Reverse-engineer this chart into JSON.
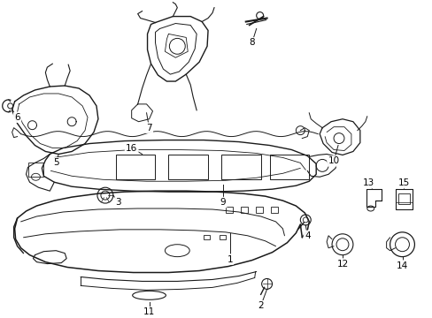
{
  "background_color": "#ffffff",
  "line_color": "#1a1a1a",
  "fig_width": 4.89,
  "fig_height": 3.6,
  "dpi": 100,
  "label_fontsize": 7.5,
  "parts": {
    "bumper_color": "#ffffff",
    "reinf_color": "#ffffff"
  }
}
